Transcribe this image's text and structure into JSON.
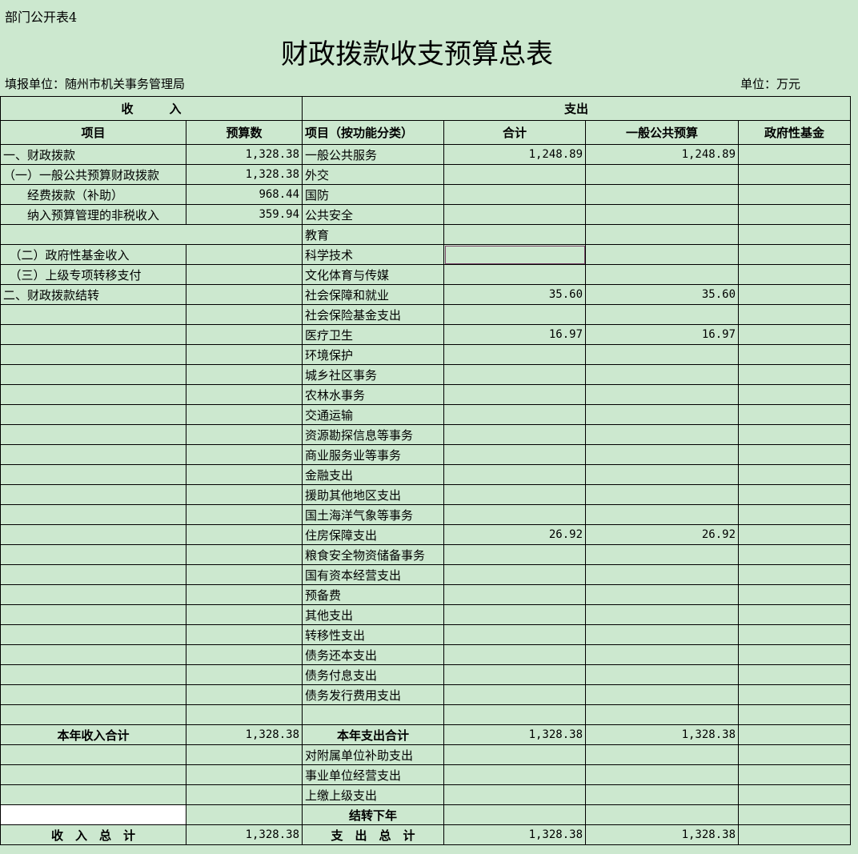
{
  "header": {
    "table_no": "部门公开表4",
    "title": "财政拨款收支预算总表",
    "unit_left": "填报单位：随州市机关事务管理局",
    "unit_right": "单位：万元"
  },
  "columns": {
    "income": "收　　　入",
    "expense": "支出",
    "item": "项目",
    "budget": "预算数",
    "func_item": "项目（按功能分类）",
    "total": "合计",
    "general": "一般公共预算",
    "fund": "政府性基金"
  },
  "rows": [
    {
      "inc": "一、财政拨款",
      "inc_v": "1,328.38",
      "exp": "一般公共服务",
      "t": "1,248.89",
      "g": "1,248.89"
    },
    {
      "inc": "（一）一般公共预算财政拨款",
      "inc_v": "1,328.38",
      "exp": "外交"
    },
    {
      "inc": "　　经费拨款（补助）",
      "inc_v": "968.44",
      "exp": "国防"
    },
    {
      "inc": "　　纳入预算管理的非税收入",
      "inc_v": "359.94",
      "exp": "公共安全"
    },
    {
      "inc": "",
      "exp": "教育",
      "merged": true
    },
    {
      "inc": "　（二）政府性基金收入",
      "exp": "科学技术"
    },
    {
      "inc": "　（三）上级专项转移支付",
      "exp": "文化体育与传媒"
    },
    {
      "inc": "二、财政拨款结转",
      "exp": "社会保障和就业",
      "t": "35.60",
      "g": "35.60"
    },
    {
      "exp": "社会保险基金支出"
    },
    {
      "exp": "医疗卫生",
      "t": "16.97",
      "g": "16.97"
    },
    {
      "exp": "环境保护"
    },
    {
      "exp": "城乡社区事务"
    },
    {
      "exp": "农林水事务"
    },
    {
      "exp": "交通运输"
    },
    {
      "exp": "资源勘探信息等事务"
    },
    {
      "exp": "商业服务业等事务"
    },
    {
      "exp": "金融支出"
    },
    {
      "exp": "援助其他地区支出"
    },
    {
      "exp": "国土海洋气象等事务"
    },
    {
      "exp": "住房保障支出",
      "t": "26.92",
      "g": "26.92"
    },
    {
      "exp": "粮食安全物资储备事务"
    },
    {
      "exp": "国有资本经营支出"
    },
    {
      "exp": "预备费"
    },
    {
      "exp": "其他支出"
    },
    {
      "exp": "转移性支出"
    },
    {
      "exp": "债务还本支出"
    },
    {
      "exp": "债务付息支出"
    },
    {
      "exp": "债务发行费用支出"
    },
    {
      "exp": ""
    },
    {
      "inc": "本年收入合计",
      "inc_v": "1,328.38",
      "exp": "本年支出合计",
      "t": "1,328.38",
      "g": "1,328.38",
      "bold": true
    },
    {
      "exp": "对附属单位补助支出"
    },
    {
      "exp": "事业单位经营支出"
    },
    {
      "exp": "上缴上级支出"
    },
    {
      "exp": "结转下年",
      "bold": true,
      "white": true
    },
    {
      "inc": "收　入　总　计",
      "inc_v": "1,328.38",
      "exp": "支　出　总　计",
      "t": "1,328.38",
      "g": "1,328.38",
      "bold": true
    }
  ]
}
